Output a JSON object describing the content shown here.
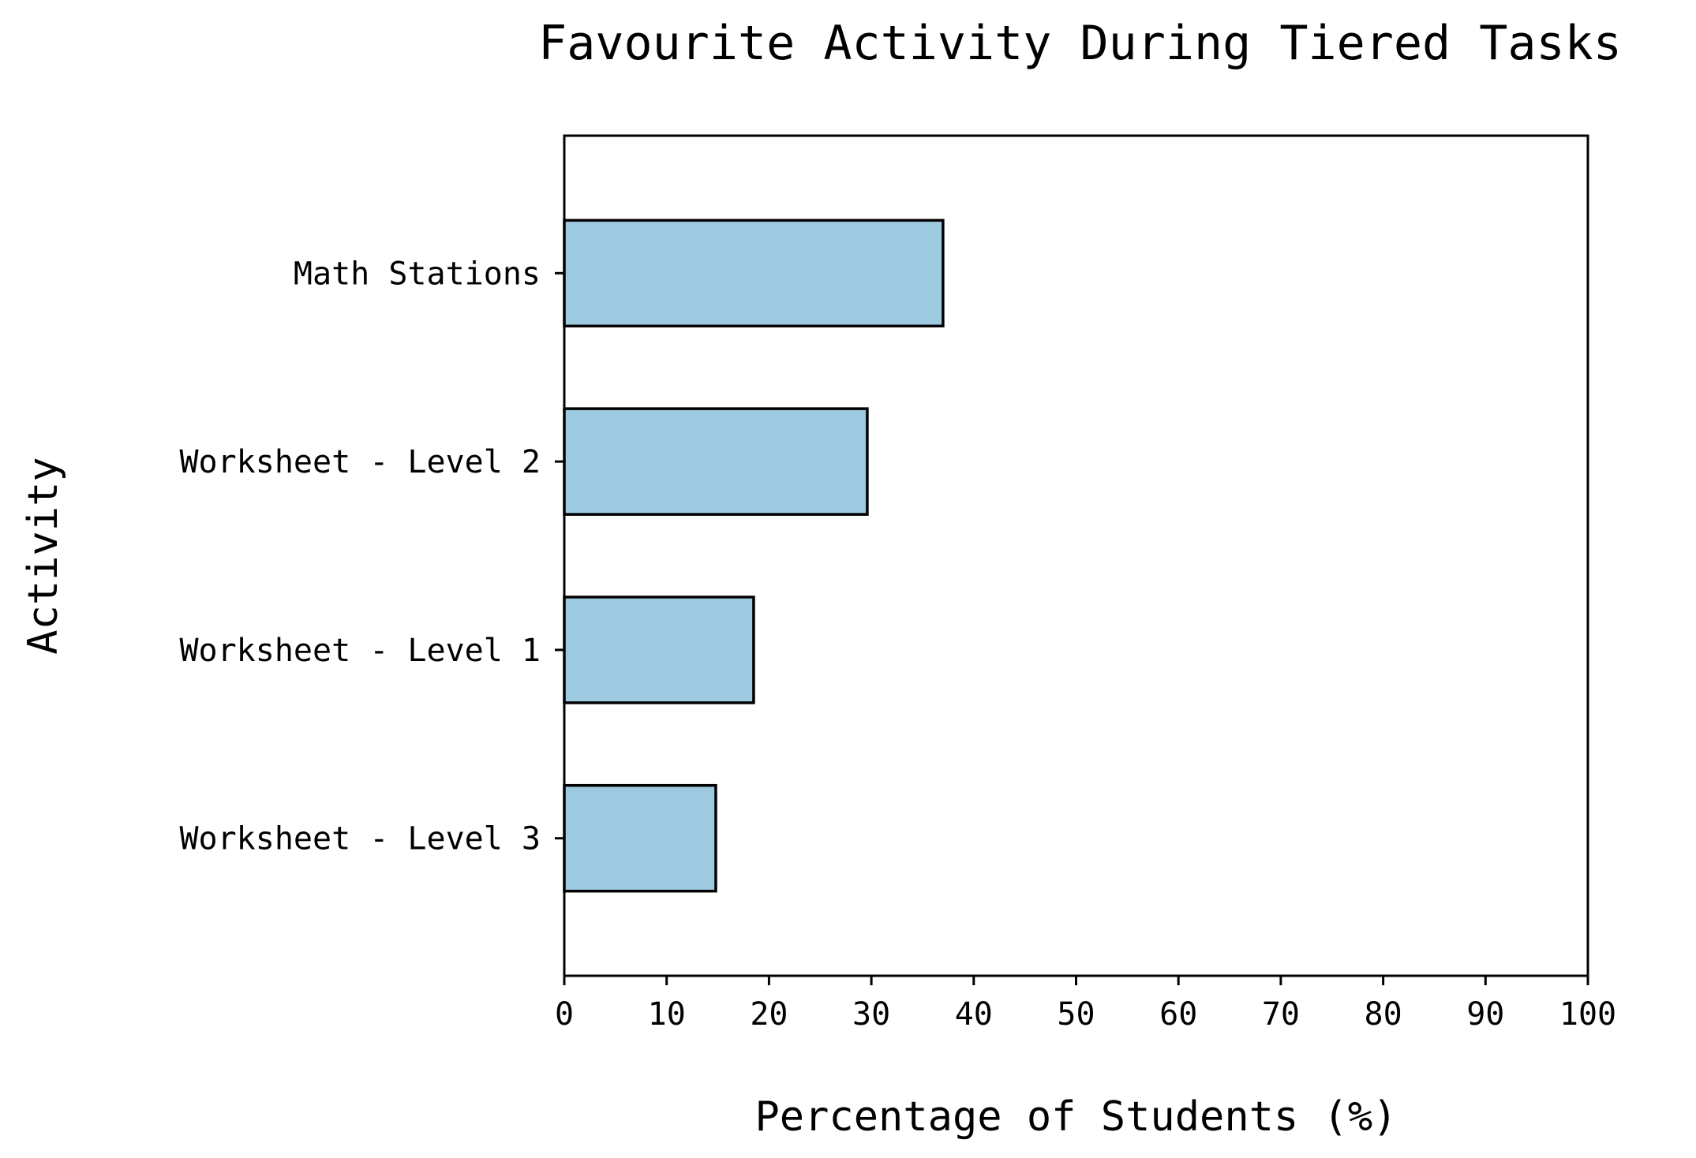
{
  "chart_data": {
    "type": "bar",
    "orientation": "horizontal",
    "title": "Favourite Activity During Tiered Tasks",
    "xlabel": "Percentage of Students (%)",
    "ylabel": "Activity",
    "categories": [
      "Worksheet - Level 3",
      "Worksheet - Level 1",
      "Worksheet - Level 2",
      "Math Stations"
    ],
    "values": [
      14.8,
      18.5,
      29.6,
      37.0
    ],
    "xlim": [
      0,
      100
    ],
    "xticks": [
      "0",
      "10",
      "20",
      "30",
      "40",
      "50",
      "60",
      "70",
      "80",
      "90",
      "100"
    ],
    "grid": false,
    "legend": "none",
    "bar_color": "#9ecae1",
    "edge_color": "#000000"
  }
}
